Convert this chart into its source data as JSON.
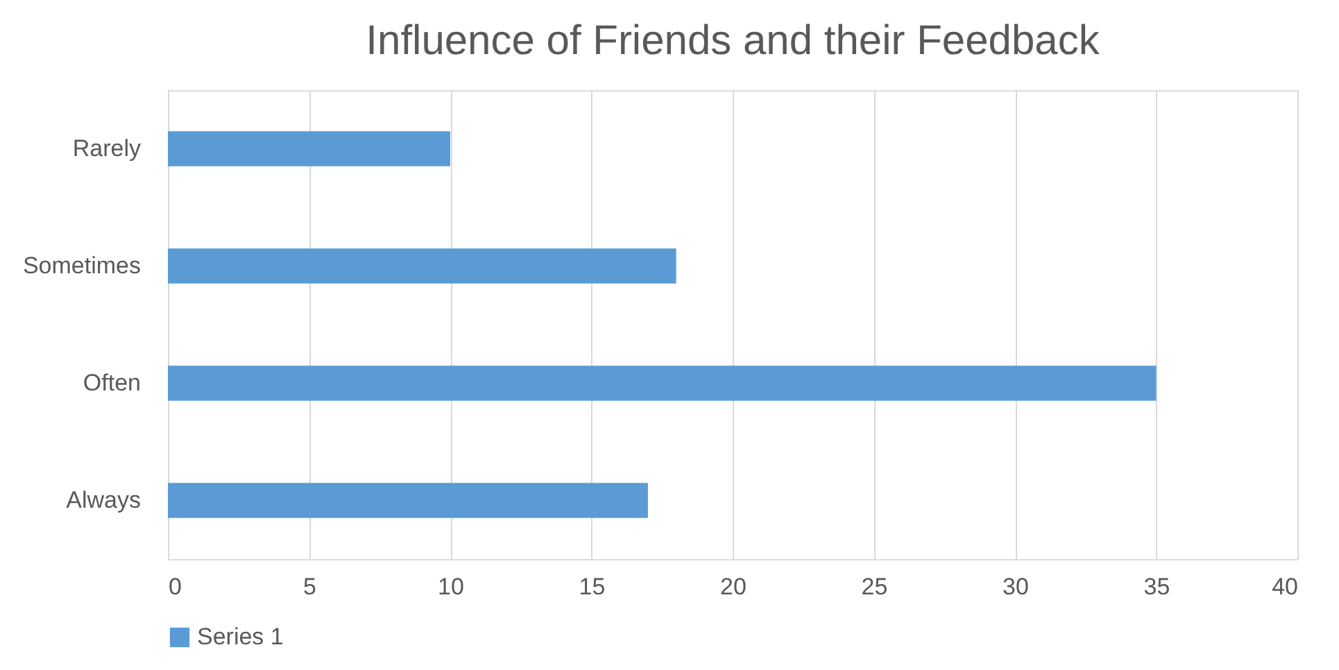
{
  "chart_data": {
    "type": "bar",
    "orientation": "horizontal",
    "title": "Influence of Friends and their Feedback",
    "categories": [
      "Rarely",
      "Sometimes",
      "Often",
      "Always"
    ],
    "series": [
      {
        "name": "Series 1",
        "color": "#5b9bd5",
        "values": [
          10,
          18,
          35,
          17
        ]
      }
    ],
    "xlim": [
      0,
      40
    ],
    "xticks": [
      0,
      5,
      10,
      15,
      20,
      25,
      30,
      35,
      40
    ],
    "grid": "x",
    "legend": "bottom"
  }
}
